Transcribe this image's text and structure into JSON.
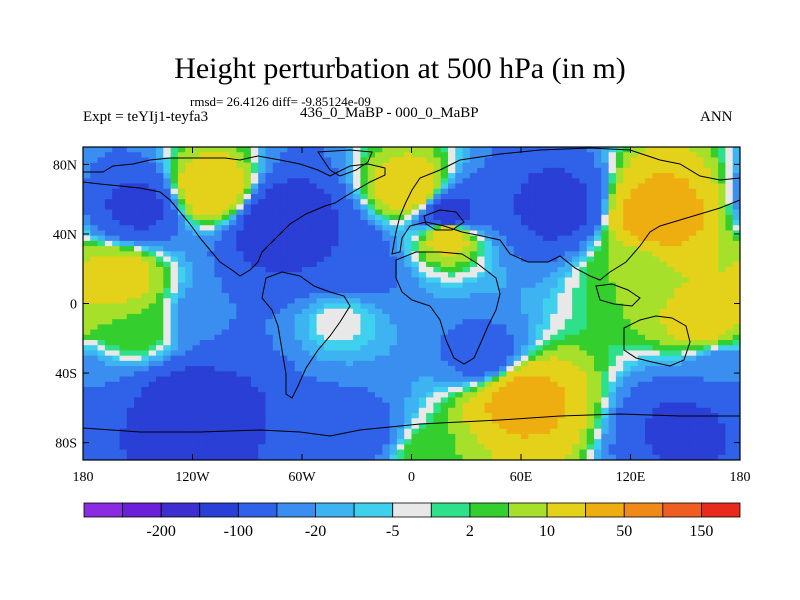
{
  "title": "Height perturbation at 500 hPa (in m)",
  "subtitle": "rmsd= 26.4126 diff= -9.85124e-09",
  "left_label": "Expt = teYIj1-teyfa3",
  "center_label": "436_0_MaBP - 000_0_MaBP",
  "right_label": "ANN",
  "axes": {
    "x_ticks": [
      "180",
      "120W",
      "60W",
      "0",
      "60E",
      "120E",
      "180"
    ],
    "y_ticks": [
      "80N",
      "40N",
      "0",
      "40S",
      "80S"
    ]
  },
  "colorbar": {
    "colors": [
      "#8a2be2",
      "#6a1fd8",
      "#3d2fcf",
      "#2a3fd6",
      "#2f62e8",
      "#3a8ef0",
      "#3db3f2",
      "#3fd0ee",
      "#e8e8e8",
      "#2ee089",
      "#34cf2e",
      "#a7e02a",
      "#e4d21a",
      "#efae10",
      "#ef8a18",
      "#ee5e20",
      "#e8291c"
    ],
    "labels": [
      "-200",
      "-100",
      "-20",
      "-5",
      "2",
      "10",
      "50",
      "150"
    ]
  },
  "chart_data": {
    "type": "heatmap",
    "title": "Height perturbation at 500 hPa (in m)",
    "xlim": [
      -180,
      180
    ],
    "ylim": [
      -90,
      90
    ],
    "levels": [
      -200,
      -150,
      -100,
      -50,
      -20,
      -10,
      -5,
      -2,
      2,
      5,
      10,
      20,
      50,
      100,
      150,
      200
    ],
    "features": [
      {
        "lon": -150,
        "lat": 55,
        "value": -60
      },
      {
        "lon": -110,
        "lat": 65,
        "value": 40
      },
      {
        "lon": -70,
        "lat": 45,
        "value": -100
      },
      {
        "lon": -40,
        "lat": 25,
        "value": -50
      },
      {
        "lon": 0,
        "lat": 65,
        "value": 40
      },
      {
        "lon": 20,
        "lat": 50,
        "value": -80
      },
      {
        "lon": 20,
        "lat": 40,
        "value": 40
      },
      {
        "lon": 80,
        "lat": 55,
        "value": -70
      },
      {
        "lon": 135,
        "lat": 50,
        "value": 80
      },
      {
        "lon": 120,
        "lat": 20,
        "value": 10
      },
      {
        "lon": -160,
        "lat": 15,
        "value": 30
      },
      {
        "lon": -150,
        "lat": -15,
        "value": 10
      },
      {
        "lon": -110,
        "lat": -10,
        "value": -20
      },
      {
        "lon": -40,
        "lat": -10,
        "value": 0
      },
      {
        "lon": 40,
        "lat": -30,
        "value": -30
      },
      {
        "lon": 160,
        "lat": -10,
        "value": 30
      },
      {
        "lon": 170,
        "lat": -40,
        "value": -20
      },
      {
        "lon": -120,
        "lat": -60,
        "value": -100
      },
      {
        "lon": -30,
        "lat": -75,
        "value": -30
      },
      {
        "lon": 60,
        "lat": -55,
        "value": 70
      },
      {
        "lon": 150,
        "lat": -70,
        "value": -60
      },
      {
        "lon": 10,
        "lat": -88,
        "value": 10
      }
    ]
  }
}
